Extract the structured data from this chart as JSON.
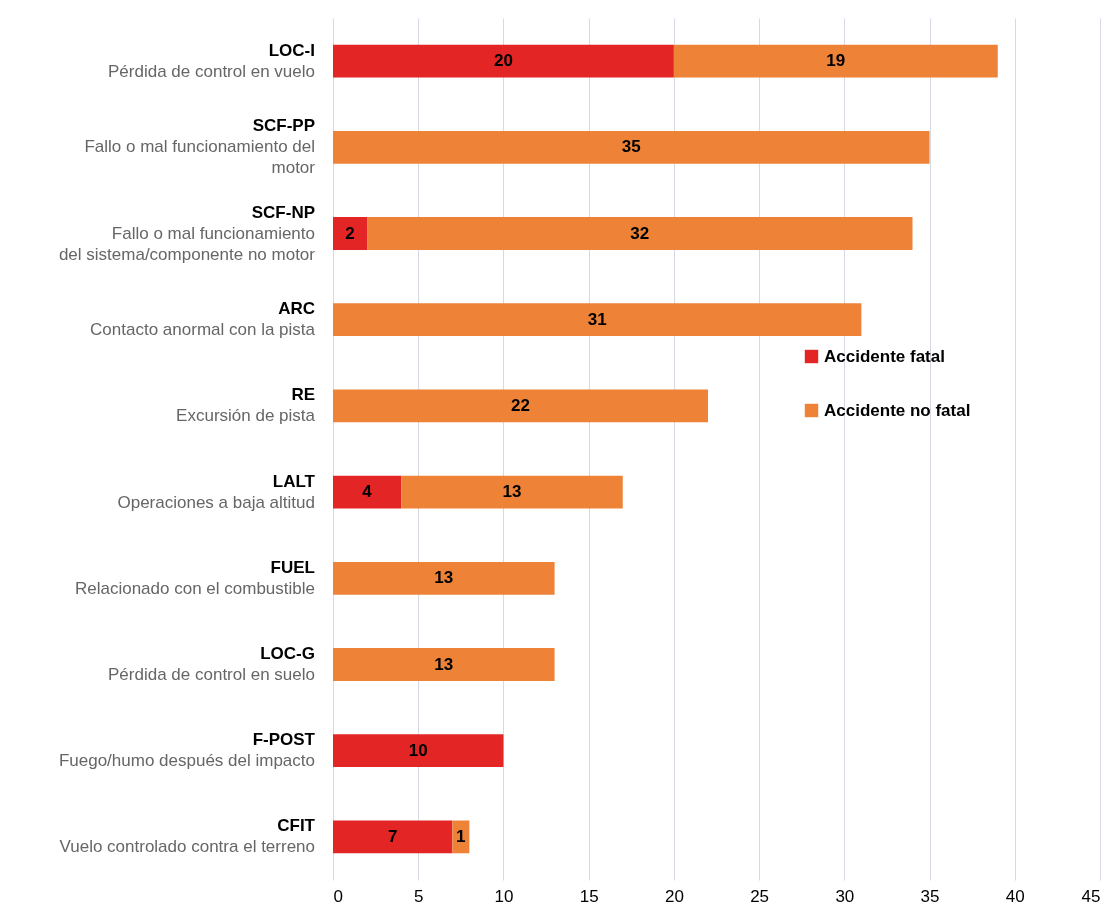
{
  "chart_data": {
    "type": "bar",
    "orientation": "horizontal",
    "stacked": true,
    "categories": [
      "LOC-I\nPérdida de control en vuelo",
      "SCF-PP\nFallo o mal funcionamiento del\nmotor",
      "SCF-NP\nFallo  o mal funcionamiento\ndel sistema/componente no motor",
      "ARC\nContacto anormal con la pista",
      "RE\nExcursión de pista",
      "LALT\nOperaciones a baja altitud",
      "FUEL\nRelacionado con el combustible",
      "LOC-G\nPérdida de control en suelo",
      "F-POST\nFuego/humo después del impacto",
      "CFIT\nVuelo controlado contra el terreno"
    ],
    "series": [
      {
        "name": "Accidente fatal",
        "color": "#e32526",
        "values": [
          20,
          null,
          2,
          null,
          null,
          4,
          null,
          null,
          10,
          7
        ]
      },
      {
        "name": "Accidente no fatal",
        "color": "#ee8236",
        "values": [
          19,
          35,
          32,
          31,
          22,
          13,
          13,
          13,
          null,
          1
        ]
      }
    ],
    "xlim": [
      0,
      45
    ],
    "xticks": [
      0,
      5,
      10,
      15,
      20,
      25,
      30,
      35,
      40,
      45
    ],
    "grid": "x",
    "legend": "right",
    "data_labels": true
  }
}
